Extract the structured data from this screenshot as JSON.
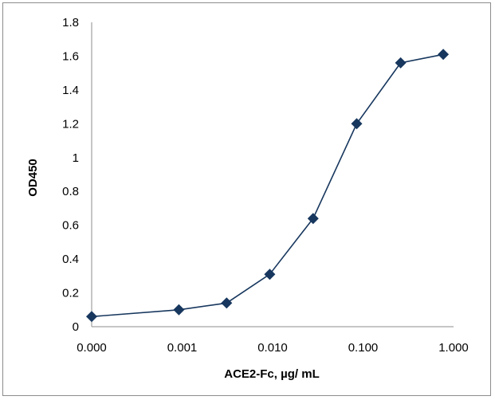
{
  "chart_data": {
    "type": "line",
    "title": "",
    "xlabel": "ACE2-Fc, µg/ mL",
    "ylabel": "OD450",
    "x_tick_labels": [
      "0.000",
      "0.001",
      "0.010",
      "0.100",
      "1.000"
    ],
    "y_ticks": [
      0,
      0.2,
      0.4,
      0.6,
      0.8,
      1,
      1.2,
      1.4,
      1.6,
      1.8
    ],
    "y_tick_labels": [
      "0",
      "0.2",
      "0.4",
      "0.6",
      "0.8",
      "1",
      "1.2",
      "1.4",
      "1.6",
      "1.8"
    ],
    "ylim": [
      0,
      1.8
    ],
    "x_scale": "log",
    "grid": false,
    "legend": "none",
    "series": [
      {
        "color": "#17375e",
        "marker": "diamond",
        "points": [
          {
            "x": 0.0001,
            "y": 0.06
          },
          {
            "x": 0.00092,
            "y": 0.1
          },
          {
            "x": 0.0031,
            "y": 0.14
          },
          {
            "x": 0.0093,
            "y": 0.31
          },
          {
            "x": 0.028,
            "y": 0.64
          },
          {
            "x": 0.085,
            "y": 1.2
          },
          {
            "x": 0.26,
            "y": 1.56
          },
          {
            "x": 0.77,
            "y": 1.61
          }
        ]
      }
    ]
  }
}
